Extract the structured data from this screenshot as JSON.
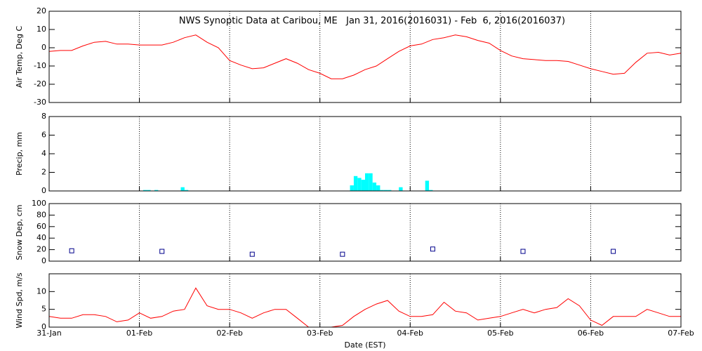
{
  "chart_data": [
    {
      "type": "line",
      "title": "NWS Synoptic Data at Caribou, ME   Jan 31, 2016(2016031) - Feb  6, 2016(2016037)",
      "ylabel": "Air Temp, Deg C",
      "color": "#ff0000",
      "xlim": [
        0,
        168
      ],
      "ylim": [
        -30,
        20
      ],
      "yticks": [
        -30,
        -20,
        -10,
        0,
        10,
        20
      ],
      "x": [
        0,
        3,
        6,
        9,
        12,
        15,
        18,
        21,
        24,
        27,
        30,
        33,
        36,
        39,
        42,
        45,
        48,
        51,
        54,
        57,
        60,
        63,
        66,
        69,
        72,
        75,
        78,
        81,
        84,
        87,
        90,
        93,
        96,
        99,
        102,
        105,
        108,
        111,
        114,
        117,
        120,
        123,
        126,
        129,
        132,
        135,
        138,
        141,
        144,
        147,
        150,
        153,
        156,
        159,
        162,
        165,
        168
      ],
      "values": [
        -2,
        -1.5,
        -1.5,
        1,
        3,
        3.5,
        2,
        2,
        1.5,
        1.5,
        1.5,
        3,
        5.5,
        7,
        3,
        0,
        -7,
        -9.5,
        -11.5,
        -11,
        -8.5,
        -6,
        -8.5,
        -12,
        -14,
        -17,
        -17,
        -15,
        -12,
        -10,
        -6,
        -2,
        1,
        2,
        4.5,
        5.5,
        7,
        6,
        4,
        2.5,
        -1.5,
        -4.5,
        -6,
        -6.5,
        -7,
        -7,
        -7.5,
        -9.5,
        -11.5,
        -13,
        -14.5,
        -14,
        -8,
        -3,
        -2.5,
        -4,
        -3
      ]
    },
    {
      "type": "bar",
      "ylabel": "Precip, mm",
      "color": "#00ffff",
      "xlim": [
        0,
        168
      ],
      "ylim": [
        0,
        8
      ],
      "yticks": [
        0,
        2,
        4,
        6,
        8
      ],
      "x": [
        25,
        26,
        28,
        35,
        36,
        80,
        81,
        82,
        83,
        84,
        85,
        86,
        87,
        88,
        89,
        90,
        93,
        100,
        101
      ],
      "values": [
        0.1,
        0.1,
        0.1,
        0.4,
        0.1,
        0.6,
        1.6,
        1.4,
        1.2,
        1.9,
        1.9,
        0.9,
        0.6,
        0.1,
        0.1,
        0.1,
        0.4,
        1.1,
        0.1
      ]
    },
    {
      "type": "scatter",
      "ylabel": "Snow Dep, cm",
      "color": "#00008b",
      "xlim": [
        0,
        168
      ],
      "ylim": [
        0,
        100
      ],
      "yticks": [
        0,
        20,
        40,
        60,
        80,
        100
      ],
      "x": [
        6,
        30,
        54,
        78,
        102,
        126,
        150
      ],
      "values": [
        18,
        17,
        12,
        12,
        21,
        17,
        17
      ]
    },
    {
      "type": "line",
      "ylabel": "Wind Spd, m/s",
      "xlabel": "Date (EST)",
      "color": "#ff0000",
      "xlim": [
        0,
        168
      ],
      "ylim": [
        0,
        15
      ],
      "yticks": [
        0,
        5,
        10
      ],
      "xticks": [
        {
          "value": 0,
          "label": "31-Jan"
        },
        {
          "value": 24,
          "label": "01-Feb"
        },
        {
          "value": 48,
          "label": "02-Feb"
        },
        {
          "value": 72,
          "label": "03-Feb"
        },
        {
          "value": 96,
          "label": "04-Feb"
        },
        {
          "value": 120,
          "label": "05-Feb"
        },
        {
          "value": 144,
          "label": "06-Feb"
        },
        {
          "value": 168,
          "label": "07-Feb"
        }
      ],
      "x": [
        0,
        3,
        6,
        9,
        12,
        15,
        18,
        21,
        24,
        27,
        30,
        33,
        36,
        39,
        42,
        45,
        48,
        51,
        54,
        57,
        60,
        63,
        66,
        69,
        72,
        75,
        78,
        81,
        84,
        87,
        90,
        93,
        96,
        99,
        102,
        105,
        108,
        111,
        114,
        117,
        120,
        123,
        126,
        129,
        132,
        135,
        138,
        141,
        144,
        147,
        150,
        153,
        156,
        159,
        162,
        165,
        168
      ],
      "values": [
        3,
        2.5,
        2.5,
        3.5,
        3.5,
        3,
        1.5,
        2,
        4,
        2.5,
        3,
        4.5,
        5,
        11,
        6,
        5,
        5,
        4,
        2.5,
        4,
        5,
        5,
        2.5,
        0,
        0,
        0,
        0.5,
        3,
        5,
        6.5,
        7.5,
        4.5,
        3,
        3,
        3.5,
        7,
        4.5,
        4,
        2,
        2.5,
        3,
        4,
        5,
        4,
        5,
        5.5,
        8,
        6,
        2,
        0.5,
        3,
        3,
        3,
        5,
        4,
        3,
        3
      ]
    }
  ]
}
